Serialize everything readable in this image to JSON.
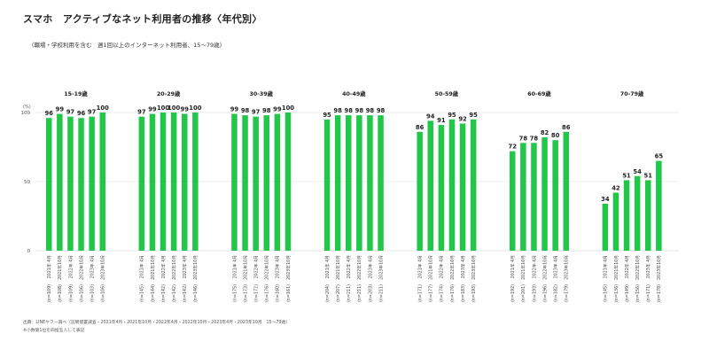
{
  "title": "スマホ　アクティブなネット利用者の推移〈年代別〉",
  "subtitle": "（職場・学校利用を含む　週1回以上のインターネット利用者、15〜79歳）",
  "footnote_source": "出典：LINEヤフー調べ（訪問留置調査・2021年4月・2021年10月・2022年4月・2022年10月・2023年4月・2023年10月　15〜79歳）",
  "footnote_rounding": "※小数第1位を四捨五入して表記",
  "colors": {
    "bar": "#22c749",
    "axis": "#999999",
    "grid": "#dddddd"
  },
  "chart_data": {
    "type": "bar",
    "unit_label": "(%)",
    "ylim": [
      0,
      100
    ],
    "yticks": [
      "0",
      "50",
      "100"
    ],
    "grid": true,
    "periods": [
      "2021年 4月",
      "2021年10月",
      "2022年 4月",
      "2022年10月",
      "2023年 4月",
      "2023年10月"
    ],
    "groups": [
      {
        "name": "15-19歳",
        "values": [
          96,
          99,
          97,
          96,
          97,
          100
        ],
        "n": [
          "(n=109)",
          "(n=108)",
          "(n=109)",
          "(n=106)",
          "(n=103)",
          "(n=106)"
        ]
      },
      {
        "name": "20-29歳",
        "values": [
          97,
          99,
          100,
          100,
          99,
          100
        ],
        "n": [
          "(n=145)",
          "(n=144)",
          "(n=142)",
          "(n=142)",
          "(n=142)",
          "(n=146)"
        ]
      },
      {
        "name": "30-39歳",
        "values": [
          99,
          98,
          97,
          98,
          99,
          100
        ],
        "n": [
          "(n=175)",
          "(n=173)",
          "(n=172)",
          "(n=176)",
          "(n=160)",
          "(n=161)"
        ]
      },
      {
        "name": "40-49歳",
        "values": [
          95,
          98,
          98,
          98,
          98,
          98
        ],
        "n": [
          "(n=204)",
          "(n=207)",
          "(n=211)",
          "(n=211)",
          "(n=203)",
          "(n=211)"
        ]
      },
      {
        "name": "50-59歳",
        "values": [
          86,
          94,
          91,
          95,
          92,
          95
        ],
        "n": [
          "(n=171)",
          "(n=177)",
          "(n=174)",
          "(n=176)",
          "(n=183)",
          "(n=193)"
        ]
      },
      {
        "name": "60-69歳",
        "values": [
          72,
          78,
          78,
          82,
          80,
          86
        ],
        "n": [
          "(n=192)",
          "(n=201)",
          "(n=193)",
          "(n=196)",
          "(n=182)",
          "(n=179)"
        ]
      },
      {
        "name": "70-79歳",
        "values": [
          34,
          42,
          51,
          54,
          51,
          65
        ],
        "n": [
          "(n=145)",
          "(n=136)",
          "(n=149)",
          "(n=156)",
          "(n=171)",
          "(n=178)"
        ]
      }
    ]
  }
}
